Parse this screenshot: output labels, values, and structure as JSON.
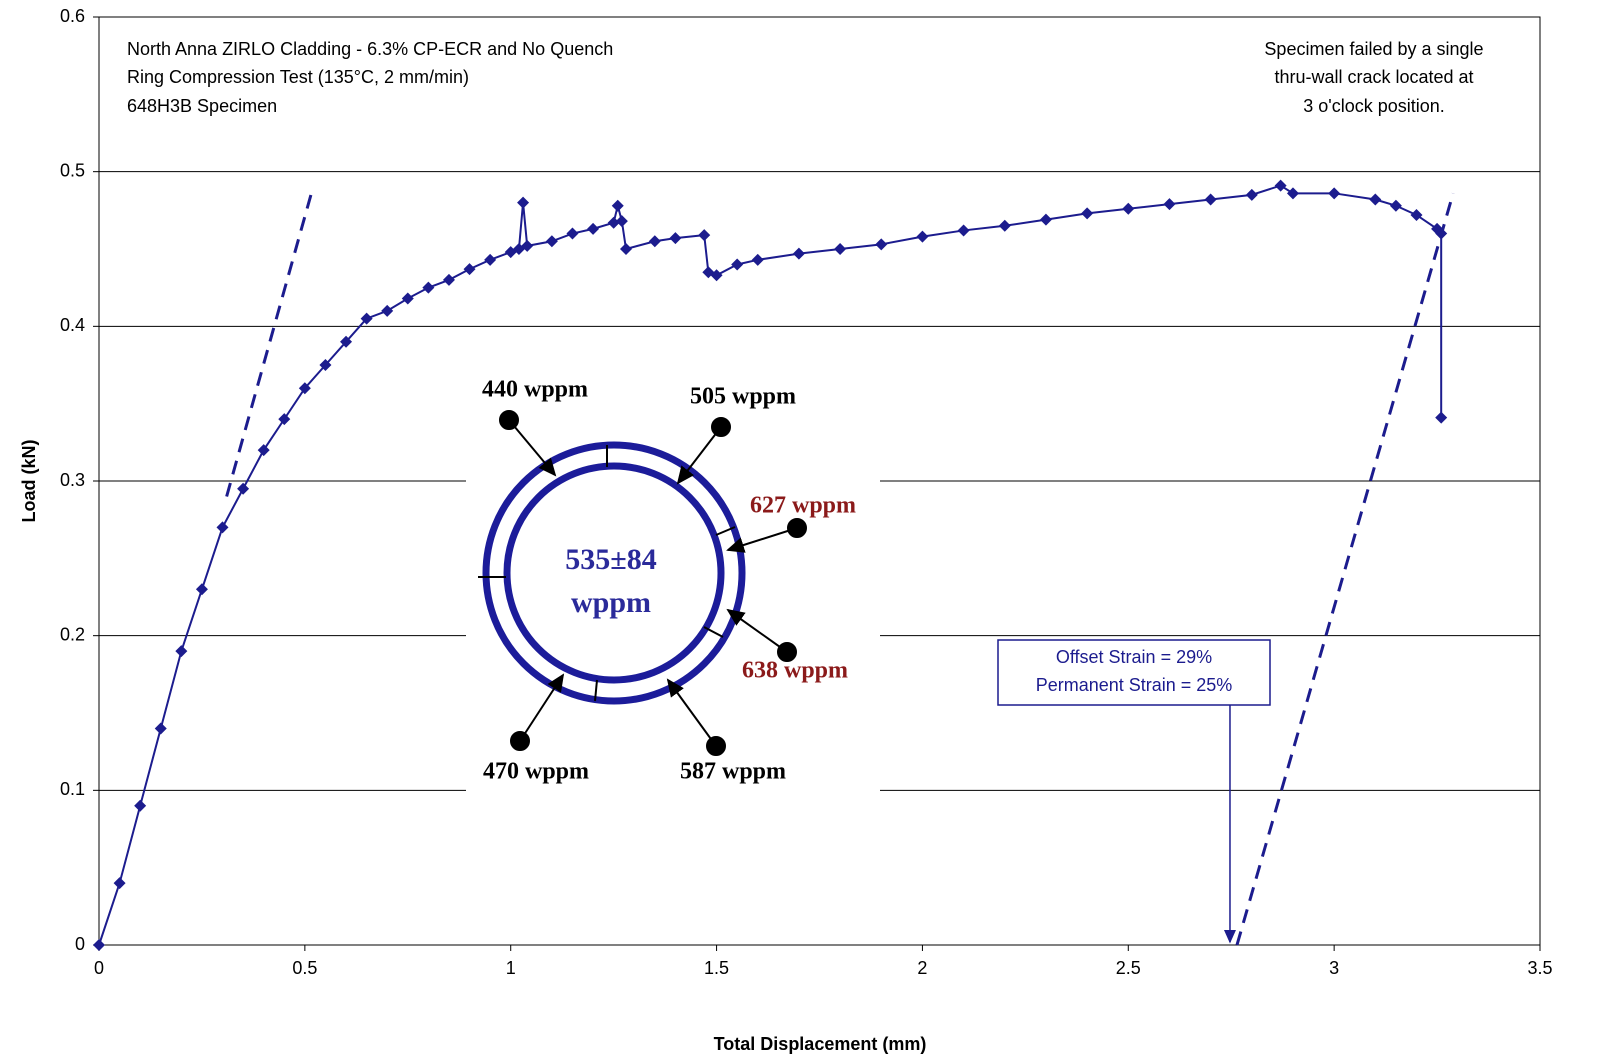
{
  "chart_data": {
    "type": "line",
    "notes_left": [
      "North Anna ZIRLO Cladding - 6.3% CP-ECR and No Quench",
      "Ring Compression Test (135°C, 2 mm/min)",
      "648H3B Specimen"
    ],
    "notes_right": [
      "Specimen failed by a single",
      "thru-wall crack located at",
      "3 o'clock position."
    ],
    "x_label": "Total Displacement (mm)",
    "y_label": "Load (kN)",
    "xlim": [
      0,
      3.5
    ],
    "xticks": [
      0,
      0.5,
      1,
      1.5,
      2,
      2.5,
      3,
      3.5
    ],
    "ylim": [
      0,
      0.6
    ],
    "yticks": [
      0,
      0.1,
      0.2,
      0.3,
      0.4,
      0.5,
      0.6
    ],
    "grid": true,
    "series": [
      {
        "color": "#1c1c8e",
        "x": [
          0,
          0.05,
          0.1,
          0.15,
          0.2,
          0.25,
          0.3,
          0.35,
          0.4,
          0.45,
          0.5,
          0.55,
          0.6,
          0.65,
          0.7,
          0.75,
          0.8,
          0.85,
          0.9,
          0.95,
          1.0,
          1.02,
          1.03,
          1.04,
          1.1,
          1.15,
          1.2,
          1.25,
          1.26,
          1.27,
          1.28,
          1.35,
          1.4,
          1.47,
          1.48,
          1.5,
          1.55,
          1.6,
          1.7,
          1.8,
          1.9,
          2.0,
          2.1,
          2.2,
          2.3,
          2.4,
          2.5,
          2.6,
          2.7,
          2.8,
          2.87,
          2.9,
          3.0,
          3.1,
          3.15,
          3.2,
          3.25,
          3.26,
          3.26
        ],
        "values": [
          0,
          0.04,
          0.09,
          0.14,
          0.19,
          0.23,
          0.27,
          0.295,
          0.32,
          0.34,
          0.36,
          0.375,
          0.39,
          0.405,
          0.41,
          0.418,
          0.425,
          0.43,
          0.437,
          0.443,
          0.448,
          0.45,
          0.48,
          0.452,
          0.455,
          0.46,
          0.463,
          0.467,
          0.478,
          0.468,
          0.45,
          0.455,
          0.457,
          0.459,
          0.435,
          0.433,
          0.44,
          0.443,
          0.447,
          0.45,
          0.453,
          0.458,
          0.462,
          0.465,
          0.469,
          0.473,
          0.476,
          0.479,
          0.482,
          0.485,
          0.491,
          0.486,
          0.486,
          0.482,
          0.478,
          0.472,
          0.463,
          0.46,
          0.341
        ]
      }
    ],
    "offset_lines": [
      {
        "x": [
          0.31,
          0.52
        ],
        "values": [
          0.29,
          0.49
        ]
      },
      {
        "x": [
          2.764,
          3.289
        ],
        "values": [
          0,
          0.486
        ]
      }
    ],
    "offset_label": [
      "Offset Strain = 29%",
      "Permanent Strain = 25%"
    ],
    "offset_arrow_x": 2.747,
    "inset": {
      "center": [
        "535±84",
        "wppm"
      ],
      "labels": [
        "440 wppm",
        "505 wppm",
        "627 wppm",
        "638 wppm",
        "470 wppm",
        "587 wppm"
      ]
    }
  }
}
